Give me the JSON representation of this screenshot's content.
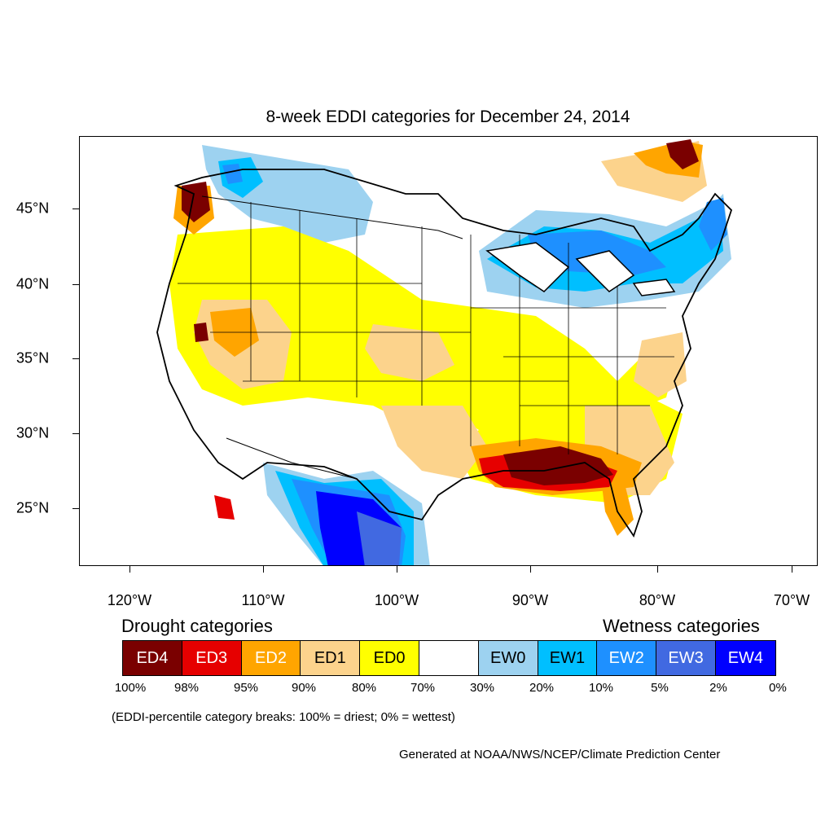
{
  "title": "8-week EDDI categories for December 24, 2014",
  "lon_labels": [
    "120°W",
    "110°W",
    "100°W",
    "90°W",
    "80°W",
    "70°W"
  ],
  "lat_labels": [
    "45°N",
    "40°N",
    "35°N",
    "30°N",
    "25°N"
  ],
  "legend": {
    "drought_title": "Drought categories",
    "wetness_title": "Wetness categories",
    "categories": [
      {
        "label": "ED4",
        "color": "#7a0000",
        "text_color": "#ffffff"
      },
      {
        "label": "ED3",
        "color": "#e60000",
        "text_color": "#ffffff"
      },
      {
        "label": "ED2",
        "color": "#ffa500",
        "text_color": "#ffffff"
      },
      {
        "label": "ED1",
        "color": "#fcd38c",
        "text_color": "#000000"
      },
      {
        "label": "ED0",
        "color": "#ffff00",
        "text_color": "#000000"
      },
      {
        "label": "",
        "color": "#ffffff",
        "text_color": "#000000"
      },
      {
        "label": "EW0",
        "color": "#9dd2f0",
        "text_color": "#000000"
      },
      {
        "label": "EW1",
        "color": "#00bfff",
        "text_color": "#000000"
      },
      {
        "label": "EW2",
        "color": "#1e90ff",
        "text_color": "#ffffff"
      },
      {
        "label": "EW3",
        "color": "#4169e1",
        "text_color": "#ffffff"
      },
      {
        "label": "EW4",
        "color": "#0000ff",
        "text_color": "#ffffff"
      }
    ],
    "breaks": [
      "100%",
      "98%",
      "95%",
      "90%",
      "80%",
      "70%",
      "30%",
      "20%",
      "10%",
      "5%",
      "2%",
      "0%"
    ]
  },
  "note": "(EDDI-percentile category breaks: 100% = driest; 0% = wettest)",
  "credit": "Generated at NOAA/NWS/NCEP/Climate Prediction Center"
}
